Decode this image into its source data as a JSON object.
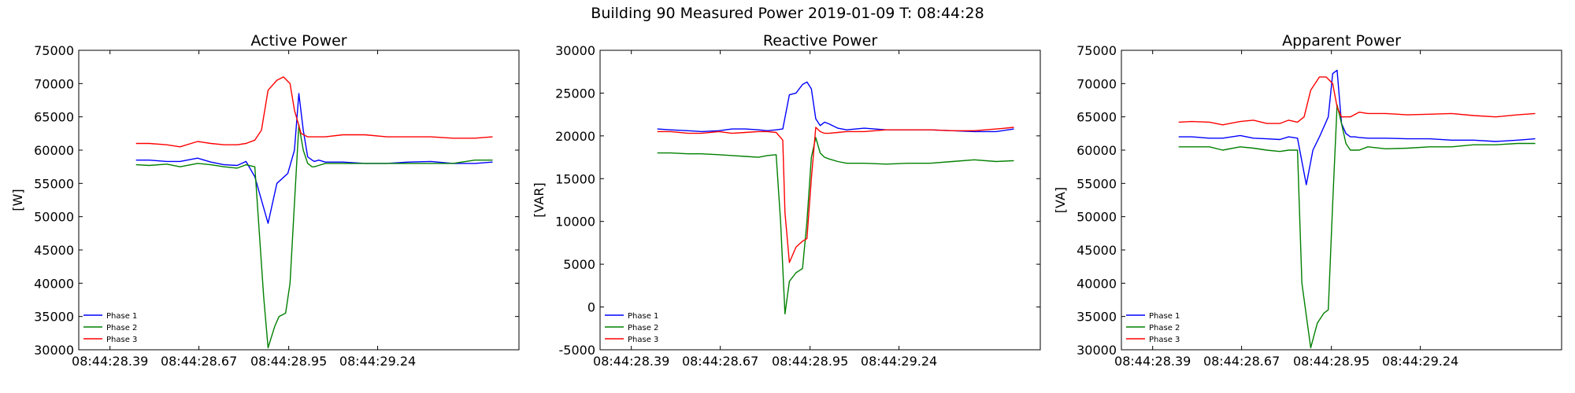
{
  "suptitle": "Building 90 Measured Power 2019-01-09 T: 08:44:28",
  "colors": {
    "phase1": "#0000ff",
    "phase2": "#008000",
    "phase3": "#ff0000"
  },
  "chart_data": [
    {
      "type": "line",
      "title": "Active Power",
      "ylabel": "[W]",
      "xlabel": "",
      "xlim": [
        0,
        1
      ],
      "ylim": [
        30000,
        75000
      ],
      "yticks": [
        30000,
        35000,
        40000,
        45000,
        50000,
        55000,
        60000,
        65000,
        70000,
        75000
      ],
      "xticks": [
        {
          "value": 0.071,
          "label": "08:44:28.39"
        },
        {
          "value": 0.273,
          "label": "08:44:28.67"
        },
        {
          "value": 0.477,
          "label": "08:44:28.95"
        },
        {
          "value": 0.679,
          "label": "08:44:29.24"
        }
      ],
      "grid": false,
      "legend": "lower-left",
      "series": [
        {
          "name": "Phase 1",
          "color": "#0000ff",
          "x": [
            0.13,
            0.16,
            0.2,
            0.23,
            0.27,
            0.3,
            0.33,
            0.36,
            0.38,
            0.4,
            0.43,
            0.45,
            0.475,
            0.49,
            0.5,
            0.51,
            0.52,
            0.53,
            0.535,
            0.545,
            0.56,
            0.6,
            0.65,
            0.7,
            0.75,
            0.8,
            0.85,
            0.9,
            0.94
          ],
          "y": [
            58500,
            58500,
            58300,
            58300,
            58800,
            58200,
            57800,
            57700,
            58300,
            56000,
            49000,
            55000,
            56500,
            60000,
            68500,
            63000,
            59000,
            58500,
            58300,
            58500,
            58200,
            58200,
            58000,
            58000,
            58200,
            58300,
            58000,
            58000,
            58200
          ]
        },
        {
          "name": "Phase 2",
          "color": "#008000",
          "x": [
            0.13,
            0.16,
            0.2,
            0.23,
            0.27,
            0.3,
            0.33,
            0.36,
            0.38,
            0.4,
            0.42,
            0.43,
            0.445,
            0.455,
            0.47,
            0.48,
            0.49,
            0.5,
            0.51,
            0.52,
            0.53,
            0.535,
            0.545,
            0.56,
            0.6,
            0.65,
            0.7,
            0.75,
            0.8,
            0.85,
            0.9,
            0.94
          ],
          "y": [
            57800,
            57700,
            57900,
            57500,
            58000,
            57800,
            57500,
            57300,
            57800,
            57500,
            38000,
            30300,
            33500,
            35000,
            35500,
            40000,
            52000,
            63800,
            60000,
            58000,
            57500,
            57500,
            57700,
            58000,
            58000,
            58000,
            58000,
            58000,
            58000,
            58000,
            58500,
            58500
          ]
        },
        {
          "name": "Phase 3",
          "color": "#ff0000",
          "x": [
            0.13,
            0.16,
            0.2,
            0.23,
            0.27,
            0.3,
            0.33,
            0.36,
            0.38,
            0.4,
            0.415,
            0.43,
            0.45,
            0.465,
            0.48,
            0.49,
            0.505,
            0.52,
            0.54,
            0.56,
            0.6,
            0.65,
            0.7,
            0.75,
            0.8,
            0.85,
            0.9,
            0.94
          ],
          "y": [
            61000,
            61000,
            60800,
            60500,
            61300,
            61000,
            60800,
            60800,
            61000,
            61500,
            63000,
            69000,
            70500,
            71000,
            70000,
            66000,
            62500,
            62000,
            62000,
            62000,
            62300,
            62300,
            62000,
            62000,
            62000,
            61800,
            61800,
            62000
          ]
        }
      ]
    },
    {
      "type": "line",
      "title": "Reactive Power",
      "ylabel": "[VAR]",
      "xlabel": "",
      "xlim": [
        0,
        1
      ],
      "ylim": [
        -5000,
        30000
      ],
      "yticks": [
        -5000,
        0,
        5000,
        10000,
        15000,
        20000,
        25000,
        30000
      ],
      "xticks": [
        {
          "value": 0.071,
          "label": "08:44:28.39"
        },
        {
          "value": 0.273,
          "label": "08:44:28.67"
        },
        {
          "value": 0.477,
          "label": "08:44:28.95"
        },
        {
          "value": 0.679,
          "label": "08:44:29.24"
        }
      ],
      "grid": false,
      "legend": "lower-left",
      "series": [
        {
          "name": "Phase 1",
          "color": "#0000ff",
          "x": [
            0.13,
            0.16,
            0.2,
            0.23,
            0.27,
            0.3,
            0.33,
            0.36,
            0.38,
            0.4,
            0.415,
            0.43,
            0.445,
            0.46,
            0.47,
            0.48,
            0.49,
            0.5,
            0.51,
            0.52,
            0.54,
            0.56,
            0.6,
            0.65,
            0.7,
            0.75,
            0.8,
            0.85,
            0.9,
            0.94
          ],
          "y": [
            20800,
            20700,
            20600,
            20500,
            20600,
            20800,
            20800,
            20700,
            20600,
            20700,
            20800,
            24800,
            25000,
            26000,
            26300,
            25500,
            22000,
            21200,
            21600,
            21400,
            20900,
            20700,
            20900,
            20700,
            20700,
            20700,
            20600,
            20500,
            20500,
            20800
          ]
        },
        {
          "name": "Phase 2",
          "color": "#008000",
          "x": [
            0.13,
            0.16,
            0.2,
            0.23,
            0.27,
            0.3,
            0.33,
            0.36,
            0.38,
            0.4,
            0.41,
            0.42,
            0.43,
            0.445,
            0.46,
            0.47,
            0.48,
            0.49,
            0.5,
            0.51,
            0.52,
            0.54,
            0.56,
            0.6,
            0.65,
            0.7,
            0.75,
            0.8,
            0.85,
            0.9,
            0.94
          ],
          "y": [
            18000,
            18000,
            17900,
            17900,
            17800,
            17700,
            17600,
            17500,
            17700,
            17800,
            10000,
            -800,
            3000,
            4000,
            4500,
            10000,
            17500,
            19800,
            18000,
            17500,
            17300,
            17000,
            16800,
            16800,
            16700,
            16800,
            16800,
            17000,
            17200,
            17000,
            17100
          ]
        },
        {
          "name": "Phase 3",
          "color": "#ff0000",
          "x": [
            0.13,
            0.16,
            0.2,
            0.23,
            0.27,
            0.3,
            0.33,
            0.36,
            0.38,
            0.4,
            0.415,
            0.42,
            0.43,
            0.445,
            0.46,
            0.47,
            0.48,
            0.49,
            0.5,
            0.51,
            0.52,
            0.54,
            0.56,
            0.6,
            0.65,
            0.7,
            0.75,
            0.8,
            0.85,
            0.9,
            0.94
          ],
          "y": [
            20500,
            20500,
            20300,
            20300,
            20500,
            20300,
            20400,
            20500,
            20500,
            20400,
            19500,
            11000,
            5200,
            7000,
            7700,
            8000,
            15000,
            21000,
            20500,
            20300,
            20300,
            20400,
            20500,
            20500,
            20700,
            20700,
            20700,
            20600,
            20600,
            20800,
            21000
          ]
        }
      ]
    },
    {
      "type": "line",
      "title": "Apparent Power",
      "ylabel": "[VA]",
      "xlabel": "",
      "xlim": [
        0,
        1
      ],
      "ylim": [
        30000,
        75000
      ],
      "yticks": [
        30000,
        35000,
        40000,
        45000,
        50000,
        55000,
        60000,
        65000,
        70000,
        75000
      ],
      "xticks": [
        {
          "value": 0.071,
          "label": "08:44:28.39"
        },
        {
          "value": 0.273,
          "label": "08:44:28.67"
        },
        {
          "value": 0.477,
          "label": "08:44:28.95"
        },
        {
          "value": 0.679,
          "label": "08:44:29.24"
        }
      ],
      "grid": false,
      "legend": "lower-left",
      "series": [
        {
          "name": "Phase 1",
          "color": "#0000ff",
          "x": [
            0.13,
            0.16,
            0.2,
            0.23,
            0.27,
            0.3,
            0.33,
            0.36,
            0.38,
            0.4,
            0.42,
            0.435,
            0.45,
            0.47,
            0.48,
            0.49,
            0.5,
            0.51,
            0.52,
            0.53,
            0.54,
            0.56,
            0.6,
            0.65,
            0.7,
            0.75,
            0.8,
            0.85,
            0.9,
            0.94
          ],
          "y": [
            62000,
            62000,
            61800,
            61800,
            62200,
            61800,
            61700,
            61600,
            62000,
            61800,
            54800,
            60000,
            62000,
            65000,
            71500,
            72000,
            64000,
            62500,
            62000,
            62000,
            61900,
            61800,
            61800,
            61700,
            61700,
            61500,
            61500,
            61300,
            61500,
            61700
          ]
        },
        {
          "name": "Phase 2",
          "color": "#008000",
          "x": [
            0.13,
            0.16,
            0.2,
            0.23,
            0.27,
            0.3,
            0.33,
            0.36,
            0.38,
            0.4,
            0.41,
            0.43,
            0.445,
            0.46,
            0.47,
            0.48,
            0.49,
            0.5,
            0.51,
            0.52,
            0.53,
            0.54,
            0.56,
            0.6,
            0.65,
            0.7,
            0.75,
            0.8,
            0.85,
            0.9,
            0.94
          ],
          "y": [
            60500,
            60500,
            60500,
            60000,
            60500,
            60300,
            60000,
            59800,
            60000,
            60000,
            40000,
            30300,
            34000,
            35500,
            36000,
            52000,
            66800,
            64000,
            61000,
            60000,
            60000,
            60000,
            60500,
            60200,
            60300,
            60500,
            60500,
            60800,
            60800,
            61000,
            61000
          ]
        },
        {
          "name": "Phase 3",
          "color": "#ff0000",
          "x": [
            0.13,
            0.16,
            0.2,
            0.23,
            0.27,
            0.3,
            0.33,
            0.36,
            0.38,
            0.4,
            0.415,
            0.43,
            0.45,
            0.465,
            0.48,
            0.49,
            0.5,
            0.51,
            0.52,
            0.54,
            0.56,
            0.6,
            0.65,
            0.7,
            0.75,
            0.8,
            0.85,
            0.9,
            0.94
          ],
          "y": [
            64200,
            64300,
            64200,
            63800,
            64300,
            64500,
            64000,
            64000,
            64500,
            64200,
            65000,
            69000,
            71000,
            71000,
            70000,
            66500,
            65000,
            65000,
            65000,
            65700,
            65500,
            65500,
            65300,
            65400,
            65500,
            65200,
            65000,
            65300,
            65500
          ]
        }
      ]
    }
  ]
}
